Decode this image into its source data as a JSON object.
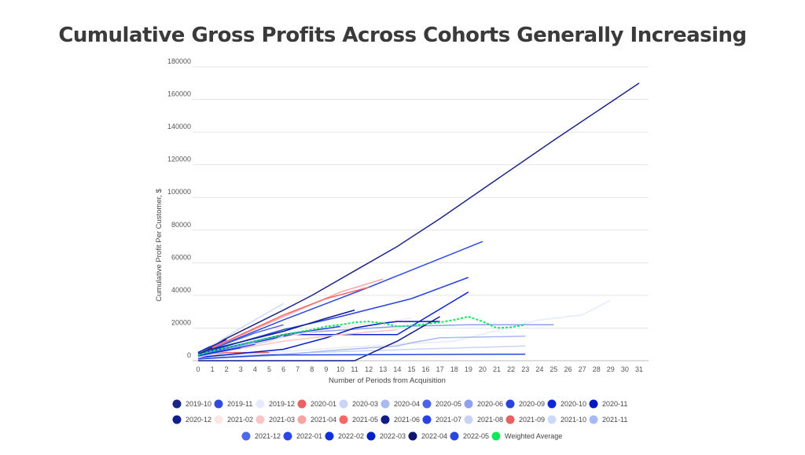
{
  "chart_data": {
    "type": "line",
    "title": "Cumulative Gross Profits Across Cohorts Generally Increasing",
    "xlabel": "Number of Periods from Acquisition",
    "ylabel": "Cumulative Profit Per Customer, $",
    "xlim": [
      0,
      31
    ],
    "ylim": [
      0,
      180000
    ],
    "xticks": [
      0,
      1,
      2,
      3,
      4,
      5,
      6,
      7,
      8,
      9,
      10,
      11,
      12,
      13,
      14,
      15,
      16,
      17,
      18,
      19,
      20,
      21,
      22,
      23,
      24,
      25,
      26,
      27,
      28,
      29,
      30,
      31
    ],
    "yticks": [
      0,
      20000,
      40000,
      60000,
      80000,
      100000,
      120000,
      140000,
      160000,
      180000
    ],
    "grid": true,
    "legend": "bottom",
    "series": [
      {
        "name": "2019-10",
        "color": "#1b2585",
        "points": [
          [
            0,
            5000
          ],
          [
            3,
            18000
          ],
          [
            6,
            31000
          ],
          [
            8,
            40000
          ],
          [
            11,
            55000
          ],
          [
            14,
            70000
          ],
          [
            17,
            87000
          ],
          [
            20,
            105000
          ],
          [
            25,
            135000
          ],
          [
            31,
            170000
          ]
        ]
      },
      {
        "name": "2019-11",
        "color": "#2e4ae3",
        "points": [
          [
            0,
            4000
          ],
          [
            6,
            25000
          ],
          [
            9,
            35000
          ],
          [
            12,
            45000
          ],
          [
            16,
            59000
          ],
          [
            18,
            66000
          ],
          [
            20,
            73000
          ]
        ]
      },
      {
        "name": "2019-12",
        "color": "#e6ebfb",
        "points": [
          [
            0,
            2000
          ],
          [
            10,
            8000
          ],
          [
            18,
            12000
          ],
          [
            24,
            25000
          ],
          [
            27,
            28000
          ],
          [
            29,
            37000
          ]
        ]
      },
      {
        "name": "2020-01",
        "color": "#e86262",
        "points": [
          [
            0,
            3000
          ],
          [
            2,
            5000
          ],
          [
            5,
            5000
          ]
        ]
      },
      {
        "name": "2020-03",
        "color": "#c9d5f6",
        "points": [
          [
            0,
            2000
          ],
          [
            8,
            5000
          ],
          [
            15,
            7000
          ],
          [
            19,
            8000
          ],
          [
            23,
            9000
          ]
        ]
      },
      {
        "name": "2020-04",
        "color": "#a9b9f1",
        "points": [
          [
            0,
            1500
          ],
          [
            5,
            3000
          ],
          [
            9,
            6000
          ],
          [
            14,
            9000
          ],
          [
            15,
            11000
          ],
          [
            17,
            14000
          ],
          [
            23,
            15000
          ]
        ]
      },
      {
        "name": "2020-05",
        "color": "#4a63e8",
        "points": [
          [
            0,
            4000
          ],
          [
            4,
            17000
          ],
          [
            6,
            22000
          ]
        ]
      },
      {
        "name": "2020-06",
        "color": "#8fa1ee",
        "points": [
          [
            0,
            3000
          ],
          [
            7,
            17000
          ],
          [
            14,
            21000
          ],
          [
            19,
            22000
          ],
          [
            25,
            22000
          ]
        ]
      },
      {
        "name": "2020-09",
        "color": "#2843e2",
        "points": [
          [
            0,
            4000
          ],
          [
            6,
            19000
          ],
          [
            10,
            27000
          ],
          [
            15,
            38000
          ],
          [
            19,
            51000
          ]
        ]
      },
      {
        "name": "2020-10",
        "color": "#0e26d8",
        "points": [
          [
            0,
            3000
          ],
          [
            6,
            15000
          ],
          [
            7,
            16000
          ],
          [
            14,
            16000
          ],
          [
            19,
            42000
          ]
        ]
      },
      {
        "name": "2020-11",
        "color": "#0019c2",
        "points": [
          [
            0,
            2000
          ],
          [
            6,
            7000
          ],
          [
            9,
            14000
          ],
          [
            11,
            20000
          ],
          [
            13,
            23000
          ],
          [
            14,
            24000
          ],
          [
            17,
            24000
          ]
        ]
      },
      {
        "name": "2020-12",
        "color": "#0f1f8b",
        "points": [
          [
            0,
            5000
          ],
          [
            6,
            18000
          ],
          [
            9,
            26000
          ],
          [
            11,
            31000
          ]
        ]
      },
      {
        "name": "2021-02",
        "color": "#fde6e6",
        "points": [
          [
            0,
            3000
          ],
          [
            8,
            18000
          ],
          [
            15,
            26000
          ]
        ]
      },
      {
        "name": "2021-03",
        "color": "#fcc4c4",
        "points": [
          [
            0,
            3000
          ],
          [
            6,
            12000
          ],
          [
            10,
            16000
          ],
          [
            14,
            19000
          ]
        ]
      },
      {
        "name": "2021-04",
        "color": "#f9a3a3",
        "points": [
          [
            0,
            4000
          ],
          [
            6,
            27000
          ],
          [
            10,
            42000
          ],
          [
            13,
            50000
          ]
        ]
      },
      {
        "name": "2021-05",
        "color": "#f46868",
        "points": [
          [
            0,
            4000
          ],
          [
            6,
            28000
          ],
          [
            9,
            38000
          ],
          [
            12,
            45000
          ]
        ]
      },
      {
        "name": "2021-06",
        "color": "#111c86",
        "points": [
          [
            0,
            0
          ],
          [
            11,
            0
          ],
          [
            14,
            12000
          ],
          [
            17,
            27000
          ]
        ]
      },
      {
        "name": "2021-07",
        "color": "#2741e6",
        "points": [
          [
            0,
            4000
          ],
          [
            6,
            16000
          ],
          [
            10,
            21000
          ]
        ]
      },
      {
        "name": "2021-08",
        "color": "#c8d4f5",
        "points": [
          [
            0,
            2000
          ],
          [
            5,
            12000
          ],
          [
            6,
            15000
          ]
        ]
      },
      {
        "name": "2021-09",
        "color": "#e86060",
        "points": [
          [
            0,
            4000
          ],
          [
            2,
            13000
          ]
        ]
      },
      {
        "name": "2021-10",
        "color": "#cfd9fa",
        "points": [
          [
            0,
            4000
          ],
          [
            3,
            20000
          ],
          [
            6,
            35000
          ]
        ]
      },
      {
        "name": "2021-11",
        "color": "#a8baf5",
        "points": [
          [
            0,
            3000
          ],
          [
            4,
            11000
          ]
        ]
      },
      {
        "name": "2021-12",
        "color": "#4d68ea",
        "points": [
          [
            0,
            3000
          ],
          [
            4,
            12000
          ],
          [
            5,
            14000
          ]
        ]
      },
      {
        "name": "2022-01",
        "color": "#2b48e6",
        "points": [
          [
            0,
            3000
          ],
          [
            4,
            10000
          ]
        ]
      },
      {
        "name": "2022-02",
        "color": "#1030dc",
        "points": [
          [
            0,
            3000
          ],
          [
            3,
            8000
          ]
        ]
      },
      {
        "name": "2022-03",
        "color": "#0020c8",
        "points": [
          [
            0,
            5000
          ],
          [
            2,
            13000
          ]
        ]
      },
      {
        "name": "2022-04",
        "color": "#0d1670",
        "points": [
          [
            0,
            4000
          ],
          [
            1,
            8000
          ]
        ]
      },
      {
        "name": "2022-05",
        "color": "#2a46e0",
        "points": [
          [
            0,
            1000
          ],
          [
            5,
            3500
          ],
          [
            23,
            4000
          ]
        ]
      },
      {
        "name": "Weighted Average",
        "color": "#10e85a",
        "dashed": true,
        "points": [
          [
            0,
            3500
          ],
          [
            1,
            6000
          ],
          [
            2,
            8000
          ],
          [
            3,
            10000
          ],
          [
            4,
            12000
          ],
          [
            5,
            14000
          ],
          [
            6,
            16000
          ],
          [
            7,
            17500
          ],
          [
            8,
            19000
          ],
          [
            9,
            21000
          ],
          [
            10,
            22000
          ],
          [
            11,
            23500
          ],
          [
            12,
            24000
          ],
          [
            13,
            23000
          ],
          [
            14,
            21000
          ],
          [
            15,
            21500
          ],
          [
            16,
            22500
          ],
          [
            17,
            23500
          ],
          [
            18,
            25000
          ],
          [
            19,
            27000
          ],
          [
            20,
            24000
          ],
          [
            21,
            20000
          ],
          [
            22,
            20500
          ],
          [
            23,
            22000
          ]
        ]
      }
    ]
  }
}
